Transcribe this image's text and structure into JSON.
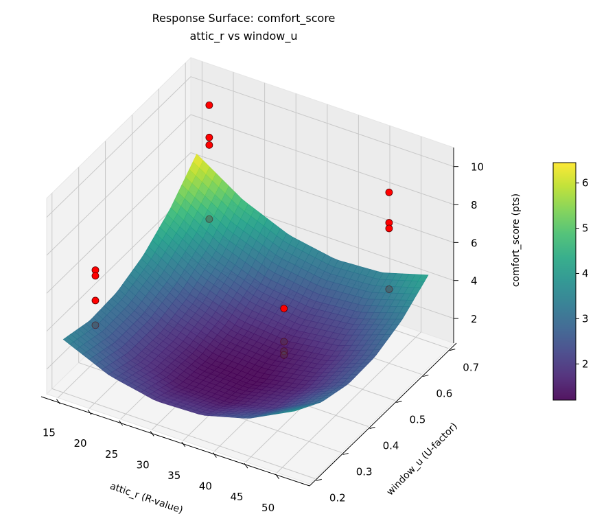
{
  "chart_data": {
    "type": "surface3d",
    "title": [
      "Response Surface: comfort_score",
      "attic_r vs window_u"
    ],
    "xlabel": "attic_r (R-value)",
    "ylabel": "window_u (U-factor)",
    "zlabel": "comfort_score (pts)",
    "xlim": [
      13.2,
      55.2
    ],
    "ylim": [
      0.18,
      0.72
    ],
    "zlim": [
      0.7,
      11.0
    ],
    "xticks": [
      15,
      20,
      25,
      30,
      35,
      40,
      45,
      50
    ],
    "yticks": [
      0.2,
      0.3,
      0.4,
      0.5,
      0.6,
      0.7
    ],
    "zticks": [
      2,
      4,
      6,
      8,
      10
    ],
    "grid": true,
    "colormap": "viridis",
    "colorbar": {
      "range": [
        1.2,
        6.45
      ],
      "ticks": [
        2,
        3,
        4,
        5,
        6
      ]
    },
    "surface": {
      "x": [
        15,
        22.4,
        29.8,
        37.2,
        44.6,
        52
      ],
      "y": [
        0.2,
        0.3,
        0.4,
        0.5,
        0.6,
        0.7
      ],
      "z": [
        [
          3.5,
          2.43,
          1.93,
          2.01,
          2.67,
          3.9
        ],
        [
          3.12,
          1.94,
          1.34,
          1.32,
          1.87,
          3.0
        ],
        [
          3.22,
          1.94,
          1.24,
          1.11,
          1.56,
          2.58
        ],
        [
          3.8,
          2.42,
          1.61,
          1.38,
          1.72,
          2.64
        ],
        [
          4.86,
          3.37,
          2.46,
          2.12,
          2.36,
          3.18
        ],
        [
          6.4,
          4.81,
          3.79,
          3.35,
          3.49,
          4.2
        ]
      ]
    },
    "observed_points": {
      "color": "#ff0000",
      "points": [
        {
          "x": 18,
          "y": 0.25,
          "z": 6.8,
          "behind_surface": false
        },
        {
          "x": 18,
          "y": 0.25,
          "z": 6.5,
          "behind_surface": false
        },
        {
          "x": 18,
          "y": 0.25,
          "z": 5.2,
          "behind_surface": false
        },
        {
          "x": 18,
          "y": 0.25,
          "z": 3.9,
          "behind_surface": true
        },
        {
          "x": 17,
          "y": 0.7,
          "z": 9.2,
          "behind_surface": false
        },
        {
          "x": 17,
          "y": 0.7,
          "z": 7.5,
          "behind_surface": false
        },
        {
          "x": 17,
          "y": 0.7,
          "z": 7.1,
          "behind_surface": false
        },
        {
          "x": 17,
          "y": 0.7,
          "z": 3.2,
          "behind_surface": true
        },
        {
          "x": 50,
          "y": 0.6,
          "z": 9.7,
          "behind_surface": false
        },
        {
          "x": 50,
          "y": 0.6,
          "z": 8.1,
          "behind_surface": false
        },
        {
          "x": 50,
          "y": 0.6,
          "z": 7.8,
          "behind_surface": false
        },
        {
          "x": 50,
          "y": 0.6,
          "z": 4.6,
          "behind_surface": true
        },
        {
          "x": 46,
          "y": 0.3,
          "z": 7.25,
          "behind_surface": false
        },
        {
          "x": 46,
          "y": 0.3,
          "z": 5.5,
          "behind_surface": true
        },
        {
          "x": 46,
          "y": 0.3,
          "z": 5.0,
          "behind_surface": true
        },
        {
          "x": 46,
          "y": 0.3,
          "z": 4.8,
          "behind_surface": true
        }
      ]
    }
  }
}
